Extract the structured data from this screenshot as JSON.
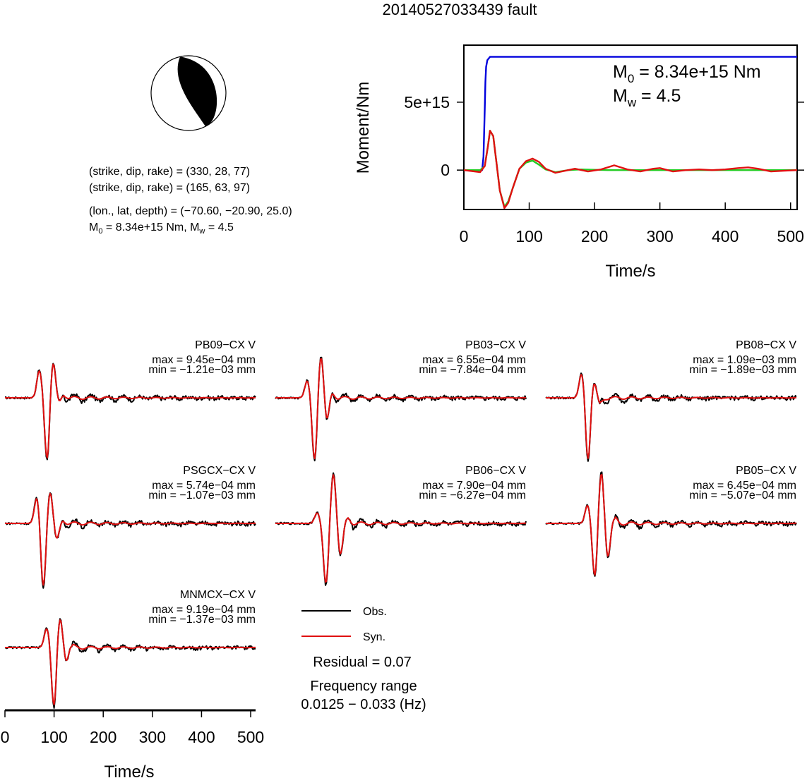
{
  "title": "20140527033439 fault",
  "focal": {
    "plane1": "(strike, dip, rake) = (330, 28, 77)",
    "plane2": "(strike, dip, rake) = (165, 63, 97)",
    "location": "(lon., lat, depth) = (−70.60, −20.90, 25.0)",
    "moment_line": {
      "m0_prefix": "M",
      "m0_sub": "0",
      "m0_rest": " = 8.34e+15 Nm, M",
      "mw_sub": "w",
      "mw_rest": " = 4.5"
    }
  },
  "moment_panel": {
    "ylabel": "Moment/Nm",
    "xlabel": "Time/s",
    "annotation_m0": {
      "prefix": "M",
      "sub": "0",
      "rest": " = 8.34e+15 Nm"
    },
    "annotation_mw": {
      "prefix": "M",
      "sub": "w",
      "rest": " = 4.5"
    }
  },
  "waveform_xlabel": "Time/s",
  "legend": {
    "obs": "Obs.",
    "syn": "Syn."
  },
  "residual": "Residual = 0.07",
  "freq_label": "Frequency range",
  "freq_value": "0.0125 − 0.033 (Hz)",
  "colors": {
    "obs": "#000000",
    "syn": "#e01010",
    "cumulative": "#0000dd",
    "rate_green": "#22cc22",
    "rate_red": "#e01010",
    "beachball_fill": "#000000"
  },
  "chart_data": [
    {
      "type": "line",
      "title": "",
      "xlabel": "Time/s",
      "ylabel": "Moment/Nm",
      "xlim": [
        0,
        510
      ],
      "x_ticks": [
        0,
        100,
        200,
        300,
        400,
        500
      ],
      "y_ticks": [
        {
          "value": 0,
          "label": "0"
        },
        {
          "value": 5000000000000000.0,
          "label": "5e+15"
        }
      ],
      "ylim": [
        -2900000000000000.0,
        9200000000000000.0
      ],
      "series": [
        {
          "x": [
            0,
            28,
            30,
            32,
            33,
            34,
            36,
            40,
            45,
            510
          ],
          "values": [
            0,
            0,
            1000000000000000.0,
            4500000000000000.0,
            6500000000000000.0,
            7600000000000000.0,
            8100000000000000.0,
            8340000000000000.0,
            8340000000000000.0,
            8340000000000000.0
          ]
        },
        {
          "x": [
            0,
            25,
            32,
            37,
            40,
            45,
            50,
            55,
            62,
            68,
            75,
            85,
            95,
            105,
            115,
            125,
            140,
            160,
            180,
            220,
            260,
            300,
            400,
            510
          ],
          "values": [
            0,
            0,
            300000000000000.0,
            1800000000000000.0,
            2900000000000000.0,
            2500000000000000.0,
            500000000000000.0,
            -1500000000000000.0,
            -2700000000000000.0,
            -2300000000000000.0,
            -1300000000000000.0,
            100000000000000.0,
            550000000000000.0,
            700000000000000.0,
            400000000000000.0,
            50000000000000.0,
            -150000000000000.0,
            0,
            50000000000000.0,
            0,
            0,
            0,
            0,
            0
          ]
        },
        {
          "x": [
            0,
            25,
            32,
            37,
            40,
            45,
            50,
            55,
            62,
            68,
            75,
            85,
            95,
            105,
            115,
            125,
            140,
            155,
            170,
            190,
            210,
            230,
            250,
            270,
            290,
            300,
            320,
            340,
            360,
            380,
            400,
            420,
            435,
            450,
            470,
            490,
            510
          ],
          "values": [
            0,
            -150000000000000.0,
            300000000000000.0,
            1800000000000000.0,
            2900000000000000.0,
            2500000000000000.0,
            500000000000000.0,
            -1500000000000000.0,
            -2800000000000000.0,
            -2400000000000000.0,
            -1300000000000000.0,
            100000000000000.0,
            650000000000000.0,
            850000000000000.0,
            600000000000000.0,
            100000000000000.0,
            -200000000000000.0,
            -50000000000000.0,
            100000000000000.0,
            -100000000000000.0,
            50000000000000.0,
            350000000000000.0,
            50000000000000.0,
            -100000000000000.0,
            100000000000000.0,
            150000000000000.0,
            -100000000000000.0,
            0,
            50000000000000.0,
            0,
            50000000000000.0,
            150000000000000.0,
            200000000000000.0,
            100000000000000.0,
            -100000000000000.0,
            -50000000000000.0,
            0
          ]
        }
      ]
    },
    {
      "type": "line",
      "xlabel": "Time/s",
      "xlim": [
        0,
        510
      ],
      "x_ticks": [
        0,
        100,
        200,
        300,
        400,
        500
      ],
      "stations": [
        {
          "name": "PB09−CX V",
          "max": "max = 9.45e−04 mm",
          "min": "min = −1.21e−03 mm",
          "peaks": [
            [
              70,
              0.55
            ],
            [
              86,
              -1.0
            ],
            [
              98,
              0.75
            ],
            [
              108,
              -0.1
            ],
            [
              120,
              0.05
            ]
          ]
        },
        {
          "name": "PB03−CX V",
          "max": "max = 6.55e−04 mm",
          "min": "min = −7.84e−04 mm",
          "peaks": [
            [
              65,
              0.35
            ],
            [
              80,
              -1.0
            ],
            [
              93,
              0.88
            ],
            [
              104,
              -0.4
            ],
            [
              115,
              0.1
            ]
          ]
        },
        {
          "name": "PB08−CX V",
          "max": "max = 1.09e−03 mm",
          "min": "min = −1.89e−03 mm",
          "peaks": [
            [
              73,
              0.5
            ],
            [
              86,
              -1.0
            ],
            [
              98,
              0.33
            ],
            [
              110,
              -0.1
            ]
          ]
        },
        {
          "name": "PSGCX−CX V",
          "max": "max = 5.74e−04 mm",
          "min": "min = −1.07e−03 mm",
          "peaks": [
            [
              65,
              0.5
            ],
            [
              78,
              -1.0
            ],
            [
              92,
              0.6
            ],
            [
              105,
              -0.25
            ],
            [
              118,
              0.05
            ]
          ]
        },
        {
          "name": "PB06−CX V",
          "max": "max = 7.90e−04 mm",
          "min": "min = −6.27e−04 mm",
          "peaks": [
            [
              85,
              0.2
            ],
            [
              103,
              -0.95
            ],
            [
              118,
              0.95
            ],
            [
              132,
              -0.5
            ],
            [
              147,
              0.1
            ]
          ]
        },
        {
          "name": "PB05−CX V",
          "max": "max = 6.45e−04 mm",
          "min": "min = −5.07e−04 mm",
          "peaks": [
            [
              85,
              0.35
            ],
            [
              100,
              -0.85
            ],
            [
              113,
              1.0
            ],
            [
              126,
              -0.55
            ],
            [
              140,
              0.1
            ]
          ]
        },
        {
          "name": "MNMCX−CX V",
          "max": "max = 9.19e−04 mm",
          "min": "min = −1.37e−03 mm",
          "peaks": [
            [
              85,
              0.45
            ],
            [
              100,
              -1.0
            ],
            [
              112,
              0.72
            ],
            [
              124,
              -0.25
            ],
            [
              137,
              0.05
            ]
          ]
        }
      ]
    }
  ]
}
